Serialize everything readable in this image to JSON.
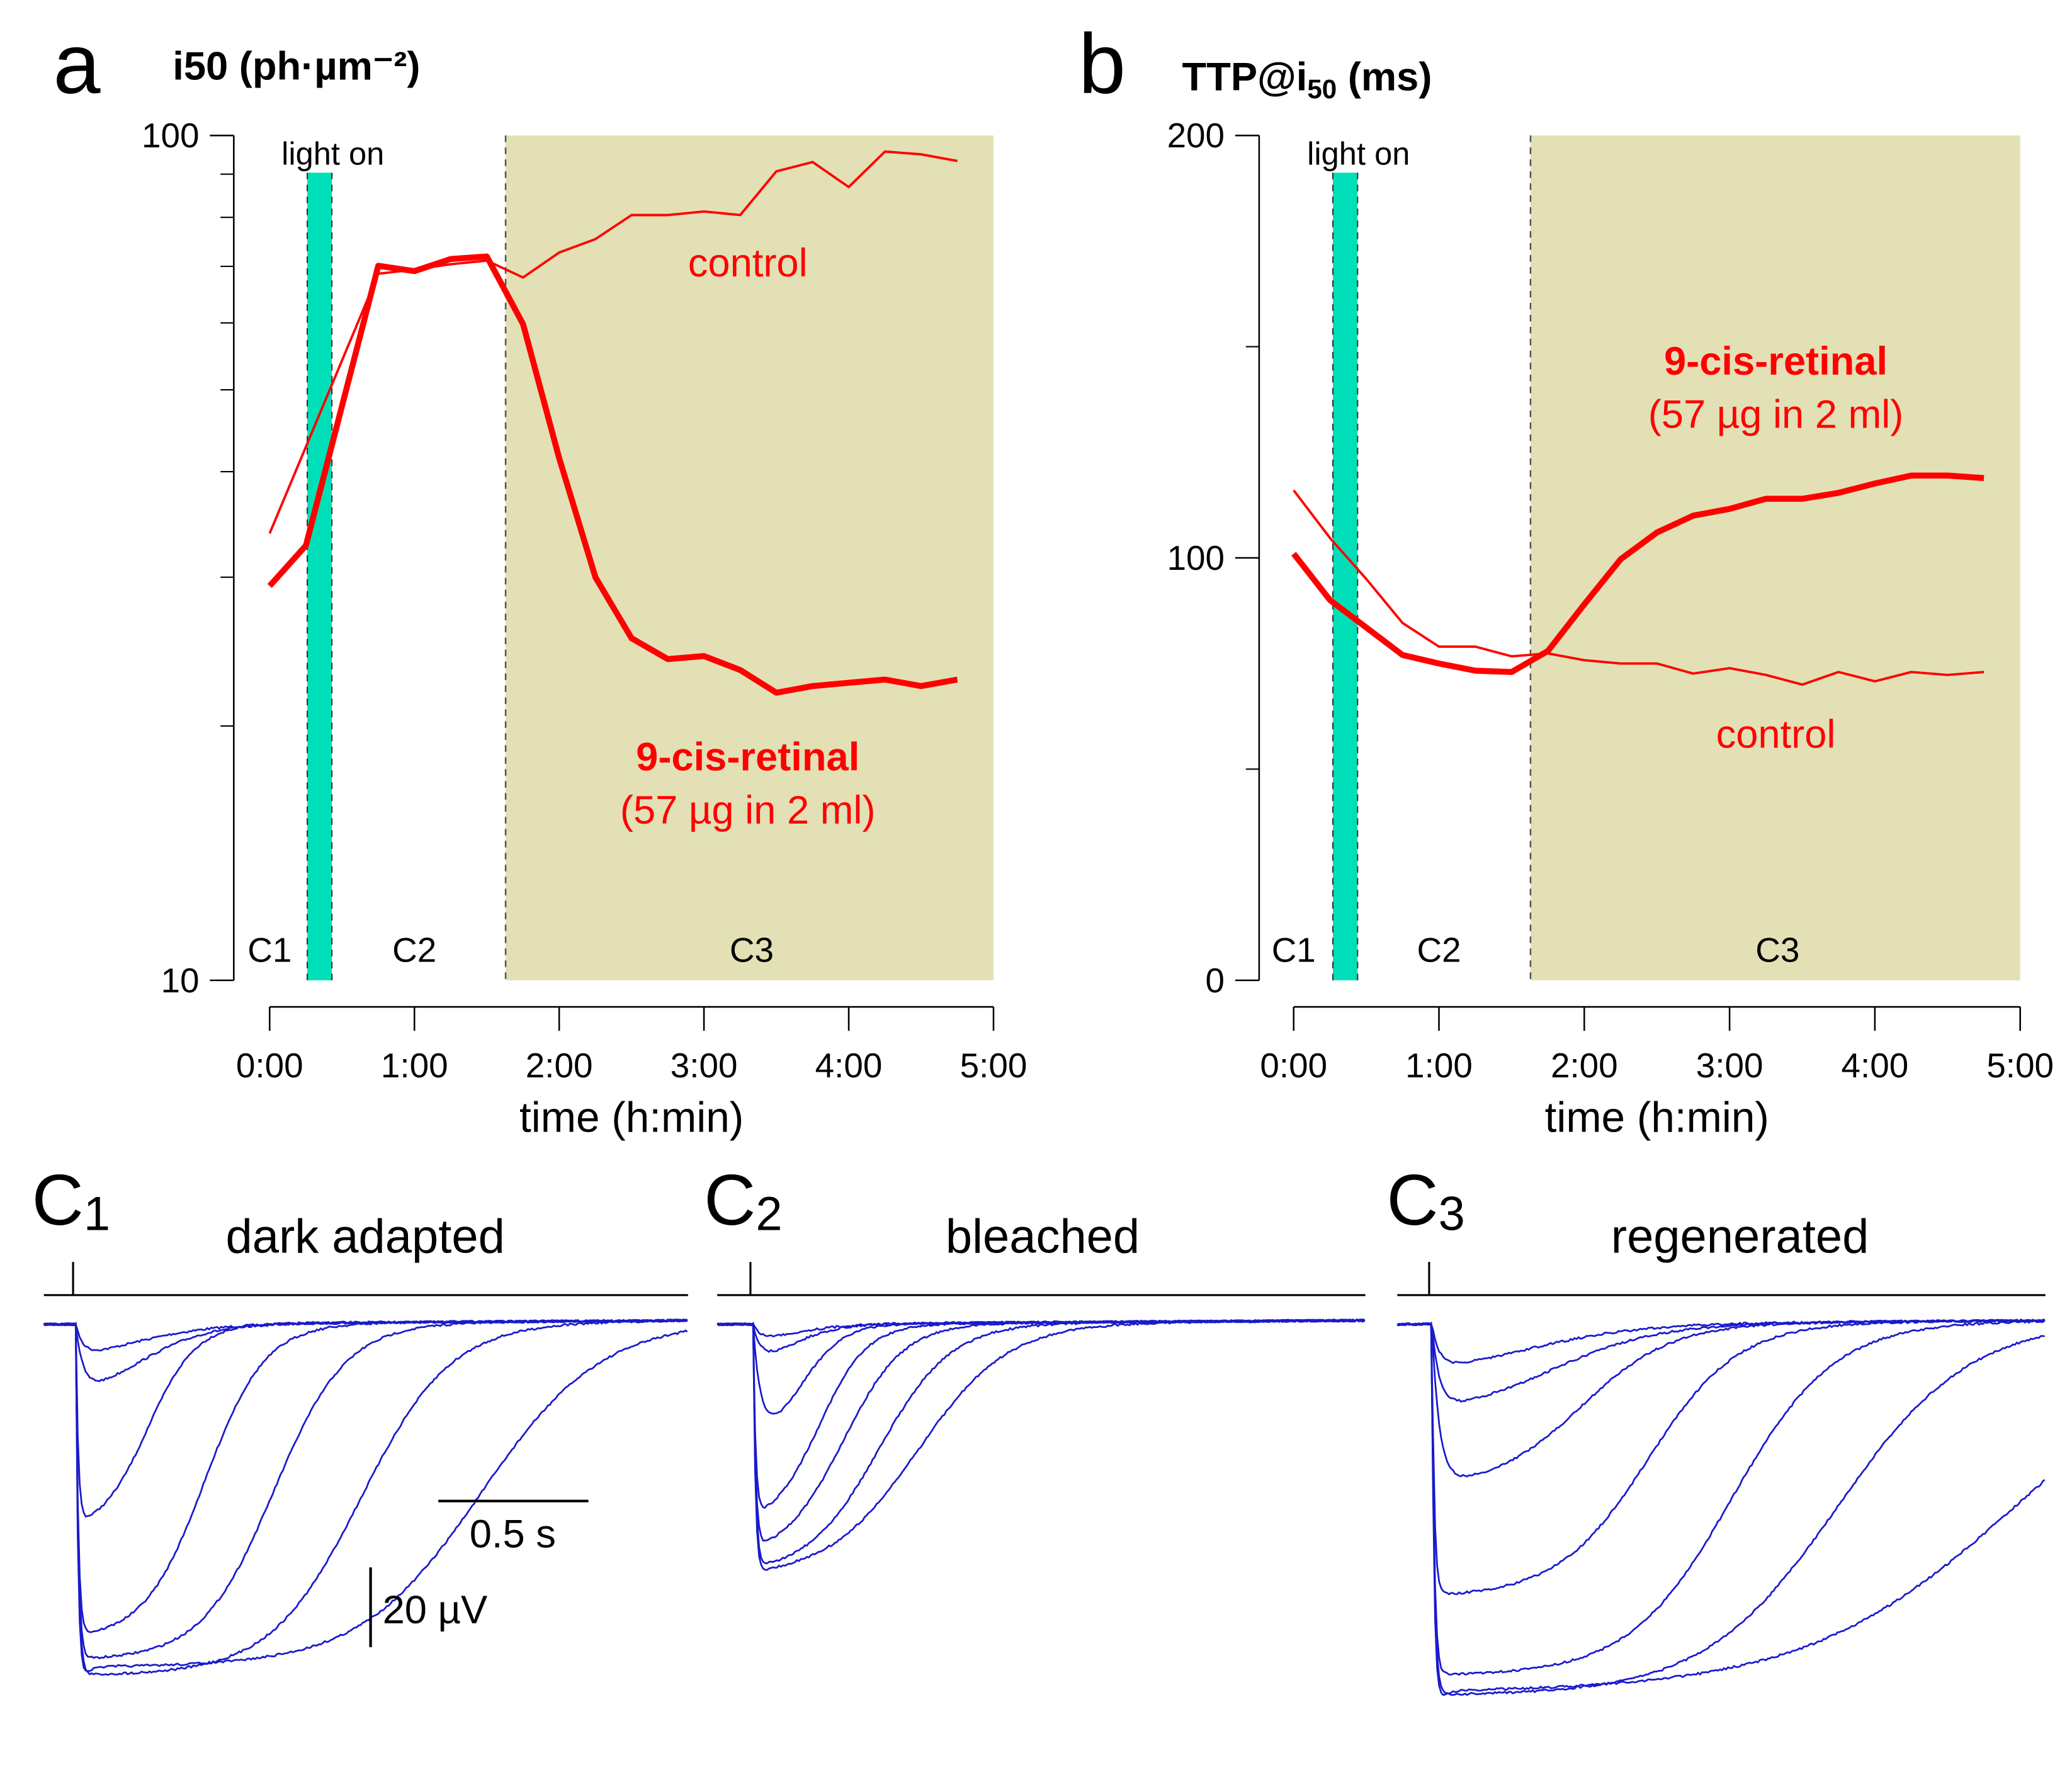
{
  "colors": {
    "red": "#ff0000",
    "shade": "#e3e0b6",
    "light_bar": "#00e0b8",
    "trace": "#1a1acc",
    "axis": "#000000"
  },
  "chart_data": [
    {
      "type": "line",
      "panel_label": "a",
      "title": "i50 (ph·µm⁻²)",
      "title_main": "i",
      "title_sub": "50",
      "title_rest": " (ph·µm",
      "title_sup": "−2",
      "title_end": ")",
      "xlabel": "time (h:min)",
      "yscale": "log",
      "ylim": [
        10,
        100
      ],
      "yticks": [
        {
          "value": 10,
          "label": "10"
        },
        {
          "value": 100,
          "label": "100"
        }
      ],
      "yminor": [
        20,
        30,
        40,
        50,
        60,
        70,
        80,
        90
      ],
      "xlim": [
        0,
        5
      ],
      "xticks": [
        {
          "value": 0,
          "label": "0:00"
        },
        {
          "value": 1,
          "label": "1:00"
        },
        {
          "value": 2,
          "label": "2:00"
        },
        {
          "value": 3,
          "label": "3:00"
        },
        {
          "value": 4,
          "label": "4:00"
        },
        {
          "value": 5,
          "label": "5:00"
        }
      ],
      "light_on": {
        "label": "light on",
        "start": 0.26,
        "end": 0.43
      },
      "shaded_from": 1.63,
      "region_labels": [
        {
          "label": "C1",
          "x": 0.0
        },
        {
          "label": "C2",
          "x": 1.0
        },
        {
          "label": "C3",
          "x": 3.33
        }
      ],
      "series": [
        {
          "name": "9-cis-retinal",
          "name_sub": "(57 µg in 2 ml)",
          "style": "thick",
          "x": [
            0,
            0.25,
            0.75,
            1.0,
            1.25,
            1.5,
            1.75,
            2.0,
            2.25,
            2.5,
            2.75,
            3.0,
            3.25,
            3.5,
            3.75,
            4.0,
            4.25,
            4.5,
            4.75
          ],
          "y": [
            29.3,
            32.7,
            70.1,
            69.1,
            71.4,
            71.9,
            59.8,
            41.5,
            30.0,
            25.4,
            24.0,
            24.2,
            23.3,
            21.9,
            22.3,
            22.5,
            22.7,
            22.3,
            22.7
          ]
        },
        {
          "name": "control",
          "style": "thin",
          "x": [
            0,
            0.75,
            1.0,
            1.25,
            1.5,
            1.75,
            2.0,
            2.25,
            2.5,
            2.75,
            3.0,
            3.25,
            3.5,
            3.75,
            4.0,
            4.25,
            4.5,
            4.75
          ],
          "y": [
            33.8,
            68.6,
            69.4,
            70.4,
            71.1,
            67.9,
            72.7,
            75.4,
            80.5,
            80.5,
            81.3,
            80.5,
            90.7,
            93.0,
            86.9,
            95.7,
            95.0,
            93.3
          ]
        }
      ]
    },
    {
      "type": "line",
      "panel_label": "b",
      "title": "TTP@i50 (ms)",
      "title_main": "TTP@i",
      "title_sub": "50",
      "title_rest": " (ms)",
      "xlabel": "time (h:min)",
      "yscale": "linear",
      "ylim": [
        0,
        200
      ],
      "yticks": [
        {
          "value": 0,
          "label": "0"
        },
        {
          "value": 100,
          "label": "100"
        },
        {
          "value": 200,
          "label": "200"
        }
      ],
      "yminor": [
        50,
        150
      ],
      "xlim": [
        0,
        5
      ],
      "xticks": [
        {
          "value": 0,
          "label": "0:00"
        },
        {
          "value": 1,
          "label": "1:00"
        },
        {
          "value": 2,
          "label": "2:00"
        },
        {
          "value": 3,
          "label": "3:00"
        },
        {
          "value": 4,
          "label": "4:00"
        },
        {
          "value": 5,
          "label": "5:00"
        }
      ],
      "light_on": {
        "label": "light on",
        "start": 0.27,
        "end": 0.44
      },
      "shaded_from": 1.63,
      "region_labels": [
        {
          "label": "C1",
          "x": 0.0
        },
        {
          "label": "C2",
          "x": 1.0
        },
        {
          "label": "C3",
          "x": 3.33
        }
      ],
      "series": [
        {
          "name": "9-cis-retinal",
          "name_sub": "(57 µg in 2 ml)",
          "style": "thick",
          "x": [
            0,
            0.25,
            0.75,
            1.0,
            1.25,
            1.5,
            1.75,
            2.0,
            2.25,
            2.5,
            2.75,
            3.0,
            3.25,
            3.5,
            3.75,
            4.0,
            4.25,
            4.5,
            4.75
          ],
          "y": [
            101,
            90,
            77,
            75,
            73.3,
            73,
            78,
            89,
            99.7,
            106,
            110,
            111.6,
            114,
            114,
            115.4,
            117.6,
            119.5,
            119.5,
            118.9
          ]
        },
        {
          "name": "control",
          "style": "thin",
          "x": [
            0,
            0.25,
            0.5,
            0.75,
            1.0,
            1.25,
            1.5,
            1.75,
            2.0,
            2.25,
            2.5,
            2.75,
            3.0,
            3.25,
            3.5,
            3.75,
            4.0,
            4.25,
            4.5,
            4.75
          ],
          "y": [
            116,
            104.7,
            95,
            84.6,
            79,
            79,
            76.7,
            77.4,
            75.8,
            75,
            75,
            72.6,
            73.9,
            72.3,
            70,
            73,
            70.8,
            73,
            72.3,
            73
          ]
        }
      ]
    },
    {
      "type": "line",
      "subtype": "flash-response traces",
      "panels": [
        {
          "label": "C",
          "label_sub": "1",
          "title": "dark adapted",
          "traces": [
            {
              "amplitude_uV": 8,
              "half_recovery_s": 0.15,
              "width_s": 0.15
            },
            {
              "amplitude_uV": 17,
              "half_recovery_s": 0.2,
              "width_s": 0.12
            },
            {
              "amplitude_uV": 50,
              "half_recovery_s": 0.24,
              "width_s": 0.08
            },
            {
              "amplitude_uV": 78,
              "half_recovery_s": 0.43,
              "width_s": 0.1
            },
            {
              "amplitude_uV": 84,
              "half_recovery_s": 0.66,
              "width_s": 0.12
            },
            {
              "amplitude_uV": 88,
              "half_recovery_s": 0.95,
              "width_s": 0.15
            },
            {
              "amplitude_uV": 86,
              "half_recovery_s": 1.35,
              "width_s": 0.2,
              "spike_uV": 98
            }
          ]
        },
        {
          "label": "C",
          "label_sub": "2",
          "title": "bleached",
          "traces": [
            {
              "amplitude_uV": 4,
              "half_recovery_s": 0.1,
              "width_s": 0.1
            },
            {
              "amplitude_uV": 9,
              "half_recovery_s": 0.12,
              "width_s": 0.08
            },
            {
              "amplitude_uV": 28,
              "half_recovery_s": 0.16,
              "width_s": 0.07
            },
            {
              "amplitude_uV": 48,
              "half_recovery_s": 0.22,
              "width_s": 0.08
            },
            {
              "amplitude_uV": 56,
              "half_recovery_s": 0.3,
              "width_s": 0.1
            },
            {
              "amplitude_uV": 61,
              "half_recovery_s": 0.42,
              "width_s": 0.12
            },
            {
              "amplitude_uV": 62,
              "half_recovery_s": 0.55,
              "width_s": 0.15,
              "spike_uV": 66
            }
          ]
        },
        {
          "label": "C",
          "label_sub": "3",
          "title": "regenerated",
          "traces": [
            {
              "amplitude_uV": 11,
              "half_recovery_s": 0.3,
              "width_s": 0.2
            },
            {
              "amplitude_uV": 21,
              "half_recovery_s": 0.4,
              "width_s": 0.18
            },
            {
              "amplitude_uV": 40,
              "half_recovery_s": 0.5,
              "width_s": 0.15
            },
            {
              "amplitude_uV": 68,
              "half_recovery_s": 0.72,
              "width_s": 0.15
            },
            {
              "amplitude_uV": 88,
              "half_recovery_s": 1.0,
              "width_s": 0.17
            },
            {
              "amplitude_uV": 93,
              "half_recovery_s": 1.35,
              "width_s": 0.22
            },
            {
              "amplitude_uV": 92,
              "half_recovery_s": 1.95,
              "width_s": 0.35,
              "spike_uV": 104
            }
          ]
        }
      ],
      "scale_bar": {
        "time_label": "0.5 s",
        "time_s": 0.5,
        "amp_label": "20 µV",
        "amp_uV": 20
      }
    }
  ]
}
